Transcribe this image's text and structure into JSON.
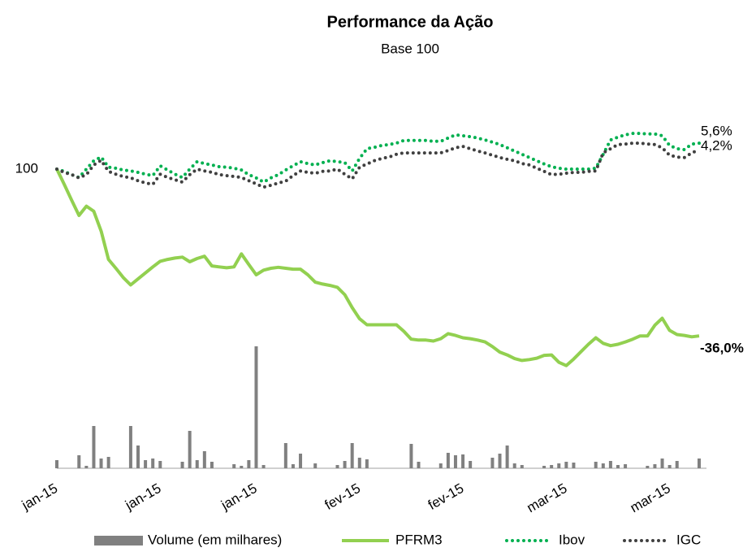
{
  "chart_data": {
    "type": "line",
    "title": "Performance da Ação",
    "subtitle": "Base 100",
    "categories": [
      "jan-15",
      null,
      null,
      null,
      null,
      null,
      null,
      null,
      null,
      null,
      null,
      null,
      null,
      null,
      "jan-15",
      null,
      null,
      null,
      null,
      null,
      null,
      null,
      null,
      null,
      null,
      null,
      null,
      "jan-15",
      null,
      null,
      null,
      null,
      null,
      null,
      null,
      null,
      null,
      null,
      null,
      null,
      null,
      "fev-15",
      null,
      null,
      null,
      null,
      null,
      null,
      null,
      null,
      null,
      null,
      null,
      null,
      null,
      "fev-15",
      null,
      null,
      null,
      null,
      null,
      null,
      null,
      null,
      null,
      null,
      null,
      null,
      null,
      "mar-15",
      null,
      null,
      null,
      null,
      null,
      null,
      null,
      null,
      null,
      null,
      null,
      null,
      null,
      "mar-15",
      null,
      null,
      null,
      null
    ],
    "ylim": [
      50,
      120
    ],
    "yticks": [
      100
    ],
    "y2lim": [
      0,
      200
    ],
    "series": [
      {
        "name": "Volume (em milhares)",
        "type": "bar",
        "axis": "y2",
        "color": "#808080",
        "values": [
          10,
          0,
          0,
          16,
          3,
          52,
          12,
          14,
          0,
          0,
          52,
          28,
          10,
          12,
          9,
          0,
          0,
          8,
          46,
          10,
          21,
          8,
          0,
          0,
          5,
          3,
          10,
          150,
          4,
          0,
          0,
          31,
          5,
          18,
          0,
          6,
          0,
          0,
          4,
          9,
          31,
          13,
          11,
          0,
          0,
          0,
          0,
          0,
          30,
          8,
          0,
          0,
          6,
          19,
          16,
          17,
          9,
          0,
          0,
          13,
          18,
          28,
          6,
          4,
          0,
          0,
          3,
          4,
          6,
          8,
          7,
          0,
          0,
          8,
          6,
          9,
          4,
          5,
          0,
          0,
          3,
          5,
          12,
          4,
          9,
          0,
          0,
          12
        ]
      },
      {
        "name": "PFRM3",
        "type": "line",
        "style": "solid",
        "color": "#92d050",
        "end_label": {
          "value": -36.0,
          "label": "-36,0%"
        },
        "values": [
          100,
          96.7,
          93.3,
          90,
          92,
          90.9,
          86.6,
          80.5,
          78.6,
          76.6,
          75,
          76.3,
          77.6,
          78.9,
          80.1,
          80.5,
          80.8,
          81,
          80,
          80.7,
          81.2,
          79.1,
          78.9,
          78.7,
          78.9,
          81.7,
          79.4,
          77.2,
          78.2,
          78.6,
          78.8,
          78.6,
          78.4,
          78.4,
          77.2,
          75.6,
          75.2,
          74.9,
          74.5,
          72.9,
          70.1,
          67.7,
          66.4,
          66.4,
          66.4,
          66.4,
          66.4,
          65,
          63.3,
          63.1,
          63.1,
          62.9,
          63.4,
          64.5,
          64.1,
          63.6,
          63.4,
          63.1,
          62.7,
          61.7,
          60.5,
          59.9,
          59.1,
          58.7,
          58.9,
          59.2,
          59.8,
          59.9,
          58.3,
          57.6,
          59,
          60.6,
          62.2,
          63.6,
          62.4,
          61.9,
          62.2,
          62.7,
          63.3,
          64,
          64,
          66.3,
          67.8,
          65.2,
          64.3,
          64.1,
          63.8,
          64
        ]
      },
      {
        "name": "Ibov",
        "type": "line",
        "style": "dotted",
        "color": "#00b050",
        "end_label": {
          "value": 5.6,
          "label": "5,6%"
        },
        "values": [
          100,
          99.5,
          98.8,
          98.2,
          100,
          101.8,
          102.6,
          100.4,
          100.2,
          99.8,
          99.6,
          99.3,
          98.9,
          98.6,
          100.7,
          99.8,
          98.9,
          98.2,
          100,
          101.6,
          101.2,
          100.9,
          100.5,
          100.4,
          100.2,
          99.8,
          98.8,
          98.1,
          97.2,
          98.1,
          98.8,
          99.8,
          100.7,
          101.6,
          101.2,
          100.9,
          101.4,
          101.8,
          101.6,
          101.4,
          99.6,
          102.3,
          104.4,
          104.7,
          105.1,
          105.3,
          105.6,
          106.2,
          106.2,
          106.2,
          106.2,
          106,
          106,
          106.7,
          107.4,
          107.2,
          107,
          106.7,
          106.3,
          105.8,
          105.3,
          104.6,
          103.9,
          103.2,
          102.5,
          101.8,
          101.1,
          100.5,
          100.2,
          100,
          100,
          100,
          100,
          100.2,
          103.2,
          106.3,
          106.9,
          107.4,
          107.7,
          107.7,
          107.6,
          107.6,
          107.2,
          105.1,
          104.4,
          104.2,
          105.4,
          105.6
        ]
      },
      {
        "name": "IGC",
        "type": "line",
        "style": "dotted",
        "color": "#404040",
        "end_label": {
          "value": 4.2,
          "label": "4,2%"
        },
        "values": [
          100,
          99.3,
          98.8,
          98.1,
          98.8,
          100.9,
          101.9,
          99.5,
          98.9,
          98.4,
          98.1,
          97.5,
          97,
          96.7,
          98.9,
          98.2,
          97.7,
          97.2,
          98.8,
          100,
          99.6,
          99.3,
          98.8,
          98.6,
          98.4,
          98.2,
          97.5,
          96.8,
          96.1,
          96.5,
          97,
          97.4,
          98.6,
          99.6,
          99.3,
          99.1,
          99.5,
          99.6,
          100,
          98.9,
          97.9,
          100.4,
          101.1,
          101.8,
          102.3,
          102.6,
          103.2,
          103.5,
          103.5,
          103.5,
          103.5,
          103.5,
          103.5,
          104,
          104.6,
          104.9,
          104.4,
          103.9,
          103.5,
          103,
          102.5,
          102.1,
          101.8,
          101.2,
          100.9,
          100.2,
          99.5,
          98.8,
          98.9,
          99.1,
          99.3,
          99.3,
          99.5,
          99.6,
          103.5,
          104.4,
          105.3,
          105.4,
          105.6,
          105.6,
          105.4,
          105.3,
          104.6,
          103,
          102.6,
          102.5,
          103.5,
          104.2
        ]
      }
    ]
  }
}
